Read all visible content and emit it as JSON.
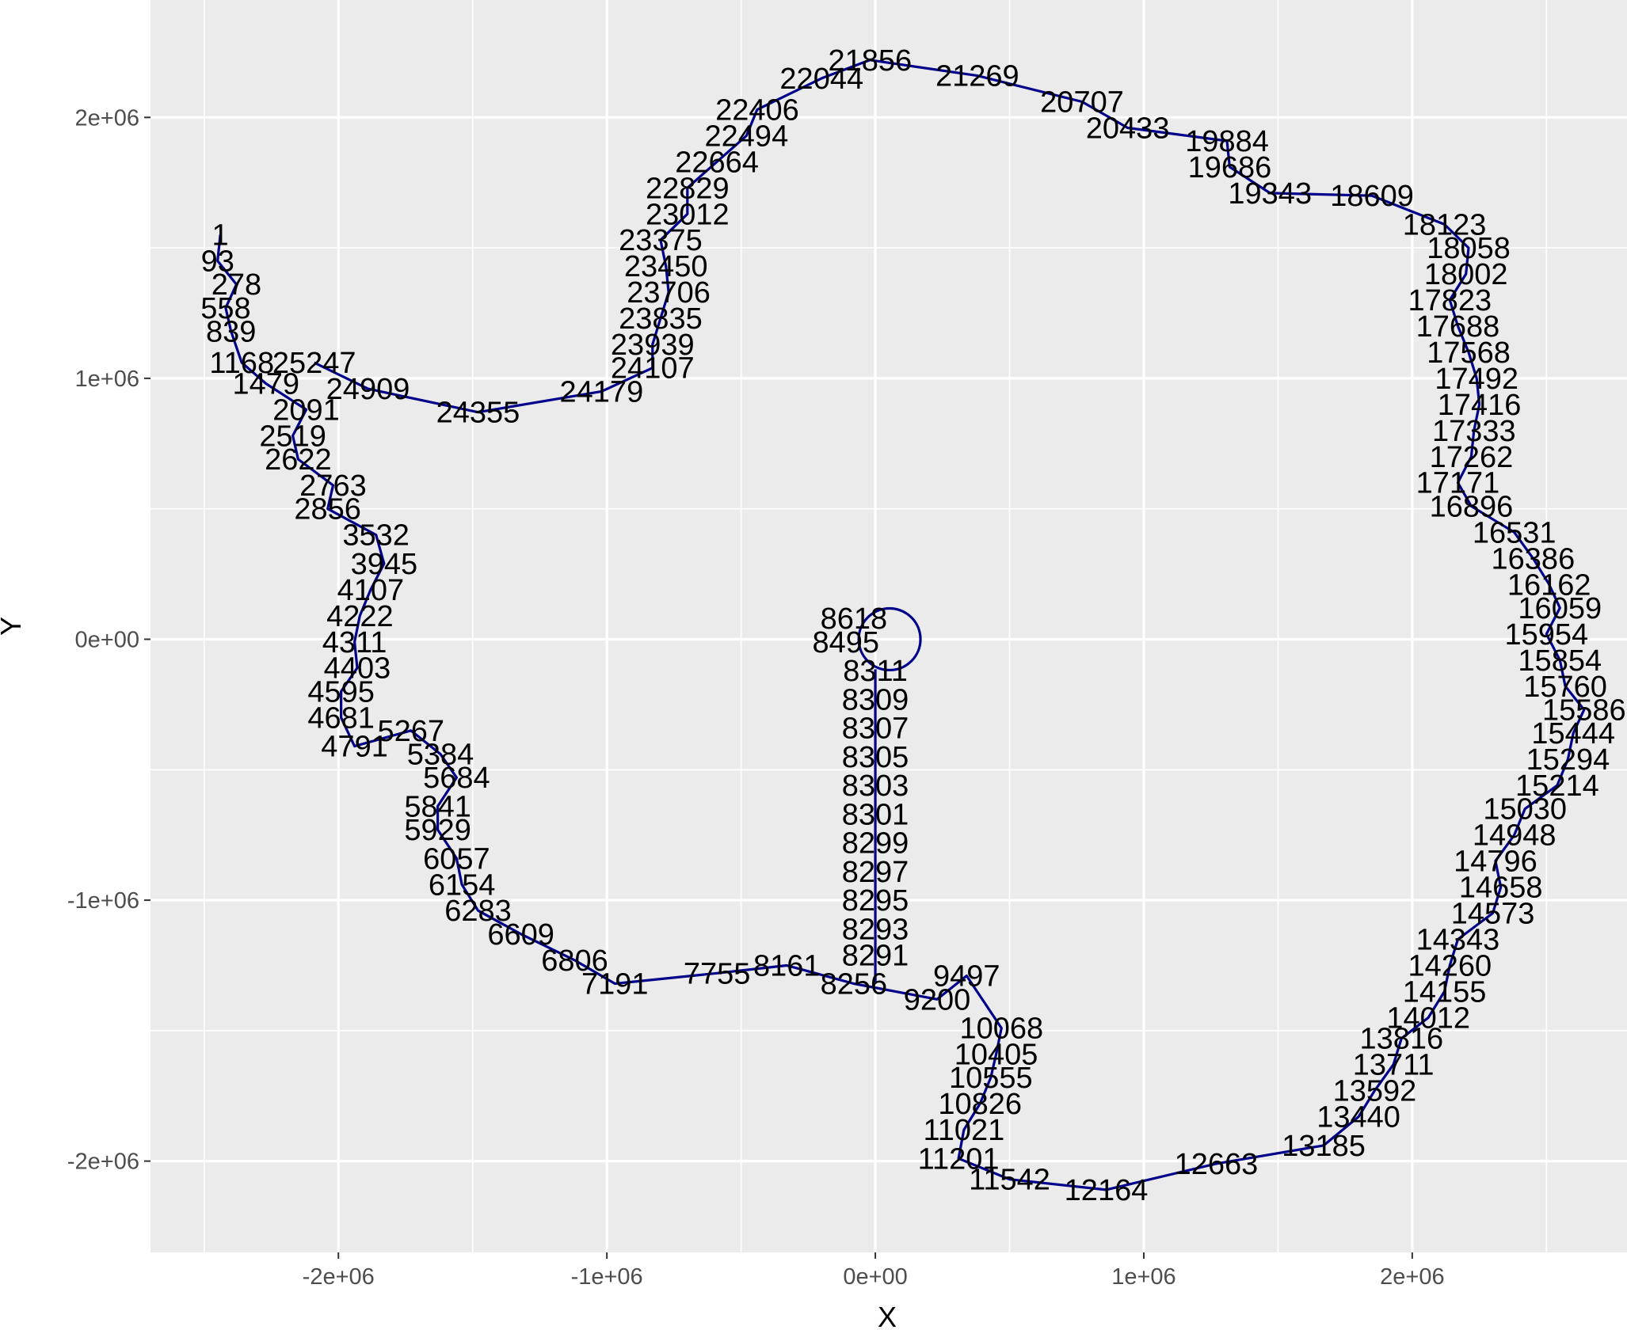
{
  "chart_data": {
    "type": "line",
    "title": "",
    "xlabel": "X",
    "ylabel": "Y",
    "xlim": [
      -2700000,
      2800000
    ],
    "ylim": [
      -2350000,
      2450000
    ],
    "x_ticks": [
      -2000000,
      -1000000,
      0,
      1000000,
      2000000
    ],
    "x_tick_labels": [
      "-2e+06",
      "-1e+06",
      "0e+00",
      "1e+06",
      "2e+06"
    ],
    "y_ticks": [
      -2000000,
      -1000000,
      0,
      1000000,
      2000000
    ],
    "y_tick_labels": [
      "-2e+06",
      "-1e+06",
      "0e+00",
      "1e+06",
      "2e+06"
    ],
    "grid": true,
    "background_color": "#ebebeb",
    "grid_color": "#ffffff",
    "line_color": "#00008b",
    "path": [
      {
        "label": "1",
        "x": -2440000,
        "y": 1550000
      },
      {
        "label": "93",
        "x": -2450000,
        "y": 1450000
      },
      {
        "label": "278",
        "x": -2380000,
        "y": 1360000
      },
      {
        "label": "558",
        "x": -2420000,
        "y": 1270000
      },
      {
        "label": "839",
        "x": -2400000,
        "y": 1180000
      },
      {
        "label": "1168",
        "x": -2360000,
        "y": 1060000
      },
      {
        "label": "1479",
        "x": -2270000,
        "y": 980000
      },
      {
        "label": "2091",
        "x": -2120000,
        "y": 880000
      },
      {
        "label": "2519",
        "x": -2170000,
        "y": 780000
      },
      {
        "label": "2622",
        "x": -2150000,
        "y": 690000
      },
      {
        "label": "2763",
        "x": -2020000,
        "y": 590000
      },
      {
        "label": "2856",
        "x": -2040000,
        "y": 500000
      },
      {
        "label": "3532",
        "x": -1860000,
        "y": 400000
      },
      {
        "label": "3945",
        "x": -1830000,
        "y": 290000
      },
      {
        "label": "4107",
        "x": -1880000,
        "y": 190000
      },
      {
        "label": "4222",
        "x": -1920000,
        "y": 90000
      },
      {
        "label": "4311",
        "x": -1940000,
        "y": -10000
      },
      {
        "label": "4403",
        "x": -1930000,
        "y": -110000
      },
      {
        "label": "4595",
        "x": -1990000,
        "y": -200000
      },
      {
        "label": "4681",
        "x": -1990000,
        "y": -300000
      },
      {
        "label": "4791",
        "x": -1940000,
        "y": -410000
      },
      {
        "label": "5267",
        "x": -1730000,
        "y": -350000
      },
      {
        "label": "5384",
        "x": -1620000,
        "y": -440000
      },
      {
        "label": "5684",
        "x": -1560000,
        "y": -530000
      },
      {
        "label": "5841",
        "x": -1630000,
        "y": -640000
      },
      {
        "label": "5929",
        "x": -1630000,
        "y": -730000
      },
      {
        "label": "6057",
        "x": -1560000,
        "y": -840000
      },
      {
        "label": "6154",
        "x": -1540000,
        "y": -940000
      },
      {
        "label": "6283",
        "x": -1480000,
        "y": -1040000
      },
      {
        "label": "6609",
        "x": -1320000,
        "y": -1130000
      },
      {
        "label": "6806",
        "x": -1120000,
        "y": -1230000
      },
      {
        "label": "7191",
        "x": -970000,
        "y": -1320000
      },
      {
        "label": "7755",
        "x": -590000,
        "y": -1280000
      },
      {
        "label": "8161",
        "x": -330000,
        "y": -1250000
      },
      {
        "label": "8256",
        "x": -80000,
        "y": -1320000
      },
      {
        "label": "8291",
        "x": 0,
        "y": -1210000
      },
      {
        "label": "8293",
        "x": 0,
        "y": -1110000
      },
      {
        "label": "8295",
        "x": 0,
        "y": -1000000
      },
      {
        "label": "8297",
        "x": 0,
        "y": -890000
      },
      {
        "label": "8299",
        "x": 0,
        "y": -780000
      },
      {
        "label": "8301",
        "x": 0,
        "y": -670000
      },
      {
        "label": "8303",
        "x": 0,
        "y": -560000
      },
      {
        "label": "8305",
        "x": 0,
        "y": -450000
      },
      {
        "label": "8307",
        "x": 0,
        "y": -340000
      },
      {
        "label": "8309",
        "x": 0,
        "y": -230000
      },
      {
        "label": "8311",
        "x": 0,
        "y": -120000
      },
      {
        "label": "8495",
        "x": -110000,
        "y": -10000
      },
      {
        "label": "8618",
        "x": -80000,
        "y": 80000
      },
      {
        "label": "9200",
        "x": 230000,
        "y": -1380000
      },
      {
        "label": "9497",
        "x": 340000,
        "y": -1290000
      },
      {
        "label": "10068",
        "x": 470000,
        "y": -1490000
      },
      {
        "label": "10405",
        "x": 450000,
        "y": -1590000
      },
      {
        "label": "10555",
        "x": 430000,
        "y": -1680000
      },
      {
        "label": "10826",
        "x": 390000,
        "y": -1780000
      },
      {
        "label": "11021",
        "x": 330000,
        "y": -1880000
      },
      {
        "label": "11201",
        "x": 310000,
        "y": -1990000
      },
      {
        "label": "11542",
        "x": 500000,
        "y": -2070000
      },
      {
        "label": "12164",
        "x": 860000,
        "y": -2110000
      },
      {
        "label": "12663",
        "x": 1270000,
        "y": -2010000
      },
      {
        "label": "13185",
        "x": 1670000,
        "y": -1940000
      },
      {
        "label": "13440",
        "x": 1800000,
        "y": -1830000
      },
      {
        "label": "13592",
        "x": 1860000,
        "y": -1730000
      },
      {
        "label": "13711",
        "x": 1930000,
        "y": -1630000
      },
      {
        "label": "13816",
        "x": 1960000,
        "y": -1530000
      },
      {
        "label": "14012",
        "x": 2060000,
        "y": -1450000
      },
      {
        "label": "14155",
        "x": 2120000,
        "y": -1350000
      },
      {
        "label": "14260",
        "x": 2140000,
        "y": -1250000
      },
      {
        "label": "14343",
        "x": 2170000,
        "y": -1150000
      },
      {
        "label": "14573",
        "x": 2300000,
        "y": -1050000
      },
      {
        "label": "14658",
        "x": 2330000,
        "y": -950000
      },
      {
        "label": "14796",
        "x": 2310000,
        "y": -850000
      },
      {
        "label": "14948",
        "x": 2380000,
        "y": -750000
      },
      {
        "label": "15030",
        "x": 2420000,
        "y": -650000
      },
      {
        "label": "15214",
        "x": 2540000,
        "y": -560000
      },
      {
        "label": "15294",
        "x": 2580000,
        "y": -460000
      },
      {
        "label": "15444",
        "x": 2600000,
        "y": -360000
      },
      {
        "label": "15586",
        "x": 2640000,
        "y": -270000
      },
      {
        "label": "15760",
        "x": 2570000,
        "y": -180000
      },
      {
        "label": "15854",
        "x": 2550000,
        "y": -80000
      },
      {
        "label": "15954",
        "x": 2500000,
        "y": 20000
      },
      {
        "label": "16059",
        "x": 2550000,
        "y": 120000
      },
      {
        "label": "16162",
        "x": 2510000,
        "y": 210000
      },
      {
        "label": "16386",
        "x": 2450000,
        "y": 310000
      },
      {
        "label": "16531",
        "x": 2380000,
        "y": 410000
      },
      {
        "label": "16896",
        "x": 2220000,
        "y": 510000
      },
      {
        "label": "17171",
        "x": 2170000,
        "y": 600000
      },
      {
        "label": "17262",
        "x": 2220000,
        "y": 700000
      },
      {
        "label": "17333",
        "x": 2230000,
        "y": 800000
      },
      {
        "label": "17416",
        "x": 2250000,
        "y": 900000
      },
      {
        "label": "17492",
        "x": 2240000,
        "y": 1000000
      },
      {
        "label": "17568",
        "x": 2210000,
        "y": 1100000
      },
      {
        "label": "17688",
        "x": 2170000,
        "y": 1200000
      },
      {
        "label": "17823",
        "x": 2140000,
        "y": 1300000
      },
      {
        "label": "18002",
        "x": 2200000,
        "y": 1400000
      },
      {
        "label": "18058",
        "x": 2210000,
        "y": 1500000
      },
      {
        "label": "18123",
        "x": 2120000,
        "y": 1590000
      },
      {
        "label": "18609",
        "x": 1850000,
        "y": 1700000
      },
      {
        "label": "19343",
        "x": 1470000,
        "y": 1710000
      },
      {
        "label": "19686",
        "x": 1320000,
        "y": 1810000
      },
      {
        "label": "19884",
        "x": 1310000,
        "y": 1910000
      },
      {
        "label": "20433",
        "x": 940000,
        "y": 1960000
      },
      {
        "label": "20707",
        "x": 770000,
        "y": 2060000
      },
      {
        "label": "21269",
        "x": 380000,
        "y": 2160000
      },
      {
        "label": "21856",
        "x": -20000,
        "y": 2220000
      },
      {
        "label": "22044",
        "x": -200000,
        "y": 2150000
      },
      {
        "label": "22406",
        "x": -440000,
        "y": 2030000
      },
      {
        "label": "22494",
        "x": -480000,
        "y": 1930000
      },
      {
        "label": "22664",
        "x": -590000,
        "y": 1830000
      },
      {
        "label": "22829",
        "x": -700000,
        "y": 1730000
      },
      {
        "label": "23012",
        "x": -700000,
        "y": 1630000
      },
      {
        "label": "23375",
        "x": -800000,
        "y": 1530000
      },
      {
        "label": "23450",
        "x": -780000,
        "y": 1430000
      },
      {
        "label": "23706",
        "x": -770000,
        "y": 1330000
      },
      {
        "label": "23835",
        "x": -800000,
        "y": 1230000
      },
      {
        "label": "23939",
        "x": -830000,
        "y": 1130000
      },
      {
        "label": "24107",
        "x": -830000,
        "y": 1040000
      },
      {
        "label": "24179",
        "x": -1020000,
        "y": 950000
      },
      {
        "label": "24355",
        "x": -1480000,
        "y": 870000
      },
      {
        "label": "24909",
        "x": -1890000,
        "y": 960000
      },
      {
        "label": "25247",
        "x": -2090000,
        "y": 1060000
      }
    ],
    "circle": {
      "center_x": 0,
      "center_y": 0,
      "radius": 115000
    }
  }
}
